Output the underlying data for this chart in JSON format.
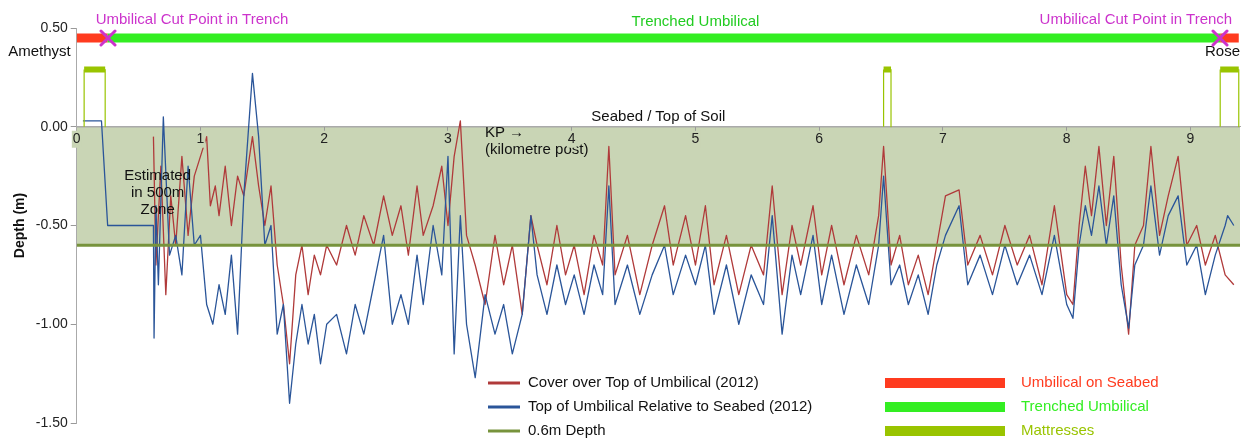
{
  "chart_data": {
    "type": "line",
    "ylabel": "Depth (m)",
    "xlim": [
      0,
      9.4
    ],
    "ylim": [
      -1.5,
      0.5
    ],
    "xticks": [
      0,
      1,
      2,
      3,
      4,
      5,
      6,
      7,
      8,
      9
    ],
    "yticks": [
      {
        "value": 0.5,
        "label": "0.50"
      },
      {
        "value": 0,
        "label": "0.00"
      },
      {
        "value": -0.5,
        "label": "-0.50"
      },
      {
        "value": -1,
        "label": "-1.00"
      },
      {
        "value": -1.5,
        "label": "-1.50"
      }
    ],
    "legend": "bottom right",
    "bands": [
      {
        "axis": "y",
        "from": -0.6,
        "to": 0,
        "color": "#c9d5b5"
      }
    ],
    "ref_lines": [
      {
        "axis": "y",
        "value": 0,
        "label": "Seabed / Top of Soil",
        "color": "#aaaaaa"
      }
    ],
    "series": [
      {
        "name": "Cover over Top of Umbilical (2012)",
        "color": "#b03a3a",
        "x": [
          0.62,
          0.64,
          0.68,
          0.72,
          0.76,
          0.8,
          0.85,
          0.9,
          0.95,
          1.05,
          1.08,
          1.12,
          1.15,
          1.2,
          1.25,
          1.3,
          1.35,
          1.42,
          1.47,
          1.52,
          1.57,
          1.62,
          1.67,
          1.72,
          1.77,
          1.82,
          1.87,
          1.92,
          1.97,
          2.02,
          2.1,
          2.18,
          2.25,
          2.32,
          2.4,
          2.48,
          2.55,
          2.62,
          2.68,
          2.75,
          2.8,
          2.88,
          2.95,
          3.0,
          3.05,
          3.1,
          3.15,
          3.22,
          3.3,
          3.38,
          3.45,
          3.52,
          3.6,
          3.67,
          3.72,
          3.8,
          3.88,
          3.95,
          4.02,
          4.1,
          4.18,
          4.25,
          4.3,
          4.35,
          4.45,
          4.55,
          4.65,
          4.75,
          4.82,
          4.92,
          5.0,
          5.08,
          5.15,
          5.25,
          5.35,
          5.45,
          5.55,
          5.62,
          5.7,
          5.78,
          5.85,
          5.95,
          6.02,
          6.1,
          6.2,
          6.3,
          6.4,
          6.48,
          6.52,
          6.58,
          6.65,
          6.72,
          6.8,
          6.88,
          6.95,
          7.02,
          7.13,
          7.2,
          7.3,
          7.4,
          7.5,
          7.6,
          7.7,
          7.8,
          7.9,
          8.0,
          8.05,
          8.1,
          8.15,
          8.2,
          8.26,
          8.32,
          8.38,
          8.44,
          8.5,
          8.55,
          8.62,
          8.68,
          8.75,
          8.82,
          8.9,
          8.97,
          9.05,
          9.12,
          9.2,
          9.28,
          9.35
        ],
        "values": [
          -0.05,
          -0.7,
          -0.2,
          -0.85,
          -0.35,
          -0.6,
          -0.15,
          -0.55,
          -0.25,
          -0.05,
          -0.4,
          -0.3,
          -0.45,
          -0.2,
          -0.5,
          -0.25,
          -0.35,
          -0.05,
          -0.3,
          -0.5,
          -0.3,
          -0.7,
          -0.9,
          -1.2,
          -0.75,
          -0.6,
          -0.85,
          -0.65,
          -0.75,
          -0.6,
          -0.7,
          -0.5,
          -0.65,
          -0.45,
          -0.6,
          -0.35,
          -0.55,
          -0.4,
          -0.65,
          -0.3,
          -0.55,
          -0.4,
          -0.2,
          -0.5,
          -0.15,
          0.03,
          -0.55,
          -0.7,
          -0.9,
          -0.55,
          -0.8,
          -0.6,
          -0.95,
          -0.45,
          -0.6,
          -0.8,
          -0.5,
          -0.75,
          -0.6,
          -0.85,
          -0.55,
          -0.7,
          -0.1,
          -0.75,
          -0.55,
          -0.85,
          -0.6,
          -0.4,
          -0.7,
          -0.45,
          -0.7,
          -0.4,
          -0.8,
          -0.55,
          -0.85,
          -0.6,
          -0.75,
          -0.3,
          -0.85,
          -0.5,
          -0.7,
          -0.4,
          -0.75,
          -0.5,
          -0.8,
          -0.55,
          -0.75,
          -0.45,
          -0.1,
          -0.7,
          -0.55,
          -0.8,
          -0.65,
          -0.85,
          -0.6,
          -0.35,
          -0.32,
          -0.7,
          -0.55,
          -0.75,
          -0.5,
          -0.7,
          -0.55,
          -0.8,
          -0.4,
          -0.85,
          -0.9,
          -0.5,
          -0.2,
          -0.45,
          -0.1,
          -0.5,
          -0.15,
          -0.7,
          -1.05,
          -0.6,
          -0.5,
          -0.1,
          -0.55,
          -0.35,
          -0.15,
          -0.6,
          -0.5,
          -0.7,
          -0.55,
          -0.75,
          -0.8
        ]
      },
      {
        "name": "Top of Umbilical Relative to Seabed (2012)",
        "color": "#2a5599",
        "x": [
          0.05,
          0.2,
          0.25,
          0.62,
          0.625,
          0.64,
          0.66,
          0.7,
          0.75,
          0.8,
          0.85,
          0.9,
          0.95,
          1.0,
          1.05,
          1.1,
          1.15,
          1.2,
          1.25,
          1.3,
          1.35,
          1.42,
          1.47,
          1.52,
          1.57,
          1.62,
          1.67,
          1.72,
          1.77,
          1.82,
          1.87,
          1.92,
          1.97,
          2.02,
          2.1,
          2.18,
          2.25,
          2.32,
          2.4,
          2.48,
          2.55,
          2.62,
          2.68,
          2.75,
          2.8,
          2.88,
          2.95,
          3.0,
          3.05,
          3.1,
          3.15,
          3.22,
          3.3,
          3.38,
          3.45,
          3.52,
          3.6,
          3.67,
          3.72,
          3.8,
          3.88,
          3.95,
          4.02,
          4.1,
          4.18,
          4.25,
          4.3,
          4.35,
          4.45,
          4.55,
          4.65,
          4.75,
          4.82,
          4.92,
          5.0,
          5.08,
          5.15,
          5.25,
          5.35,
          5.45,
          5.55,
          5.62,
          5.7,
          5.78,
          5.85,
          5.95,
          6.02,
          6.1,
          6.2,
          6.3,
          6.4,
          6.48,
          6.52,
          6.58,
          6.65,
          6.72,
          6.8,
          6.88,
          6.95,
          7.02,
          7.13,
          7.2,
          7.3,
          7.4,
          7.5,
          7.6,
          7.7,
          7.8,
          7.9,
          8.0,
          8.05,
          8.1,
          8.15,
          8.2,
          8.26,
          8.32,
          8.38,
          8.44,
          8.5,
          8.55,
          8.62,
          8.68,
          8.75,
          8.82,
          8.9,
          8.97,
          9.05,
          9.12,
          9.2,
          9.28,
          9.3,
          9.35
        ],
        "values": [
          0.03,
          0.03,
          -0.5,
          -0.5,
          -1.07,
          -0.4,
          -0.8,
          0.05,
          -0.65,
          -0.55,
          -0.75,
          -0.2,
          -0.6,
          -0.55,
          -0.9,
          -1.0,
          -0.8,
          -0.95,
          -0.65,
          -1.05,
          -0.35,
          0.27,
          -0.05,
          -0.6,
          -0.5,
          -1.05,
          -0.9,
          -1.4,
          -1.1,
          -0.9,
          -1.1,
          -0.95,
          -1.2,
          -1.0,
          -0.95,
          -1.15,
          -0.9,
          -1.05,
          -0.8,
          -0.55,
          -1.0,
          -0.85,
          -1.0,
          -0.65,
          -0.9,
          -0.5,
          -0.75,
          -0.15,
          -1.15,
          -0.45,
          -1.0,
          -1.27,
          -0.85,
          -1.05,
          -0.9,
          -1.15,
          -0.95,
          -0.45,
          -0.75,
          -0.95,
          -0.7,
          -0.9,
          -0.75,
          -0.95,
          -0.7,
          -0.85,
          -0.3,
          -0.9,
          -0.7,
          -0.95,
          -0.75,
          -0.6,
          -0.85,
          -0.65,
          -0.8,
          -0.6,
          -0.95,
          -0.7,
          -1.0,
          -0.75,
          -0.9,
          -0.45,
          -1.05,
          -0.65,
          -0.85,
          -0.55,
          -0.9,
          -0.65,
          -0.95,
          -0.7,
          -0.9,
          -0.6,
          -0.25,
          -0.8,
          -0.7,
          -0.9,
          -0.75,
          -0.95,
          -0.7,
          -0.55,
          -0.4,
          -0.8,
          -0.65,
          -0.85,
          -0.6,
          -0.8,
          -0.65,
          -0.85,
          -0.55,
          -0.9,
          -0.97,
          -0.6,
          -0.4,
          -0.55,
          -0.3,
          -0.6,
          -0.35,
          -0.8,
          -1.02,
          -0.7,
          -0.6,
          -0.3,
          -0.65,
          -0.45,
          -0.35,
          -0.7,
          -0.6,
          -0.85,
          -0.65,
          -0.5,
          -0.45,
          -0.5
        ]
      },
      {
        "name": "0.6m Depth",
        "color": "#77933c",
        "x": [
          0,
          9.4
        ],
        "values": [
          -0.6,
          -0.6
        ]
      },
      {
        "name": "Umbilical on Seabed",
        "color": "#ff3b1f",
        "x": [
          0,
          0.25,
          null,
          9.24,
          9.39
        ],
        "values": [
          0.45,
          0.45,
          null,
          0.45,
          0.45
        ]
      },
      {
        "name": "Trenched Umbilical",
        "color": "#33ee22",
        "x": [
          0.25,
          9.24
        ],
        "values": [
          0.45,
          0.45
        ]
      },
      {
        "name": "Mattresses",
        "color": "#99c400",
        "x": [
          0.06,
          0.06,
          0.23,
          0.23,
          null,
          6.52,
          6.52,
          6.58,
          6.58,
          null,
          9.24,
          9.24,
          9.39,
          9.39
        ],
        "values": [
          0,
          0.29,
          0.29,
          0,
          null,
          0,
          0.29,
          0.29,
          0,
          null,
          0,
          0.29,
          0.29,
          0
        ]
      }
    ],
    "annotations": [
      {
        "text": "Umbilical Cut Point in Trench",
        "x": 0.25,
        "y": 0.45
      },
      {
        "text": "Trenched Umbilical",
        "x": 5,
        "y": 0.45
      },
      {
        "text": "Umbilical Cut Point in Trench",
        "x": 9.24,
        "y": 0.45
      },
      "Amethyst",
      "Rose",
      {
        "text": "Estimated\nin 500m\nZone",
        "x": 0.25,
        "y": -0.25
      },
      "KP →\n(kilometre post)"
    ]
  }
}
